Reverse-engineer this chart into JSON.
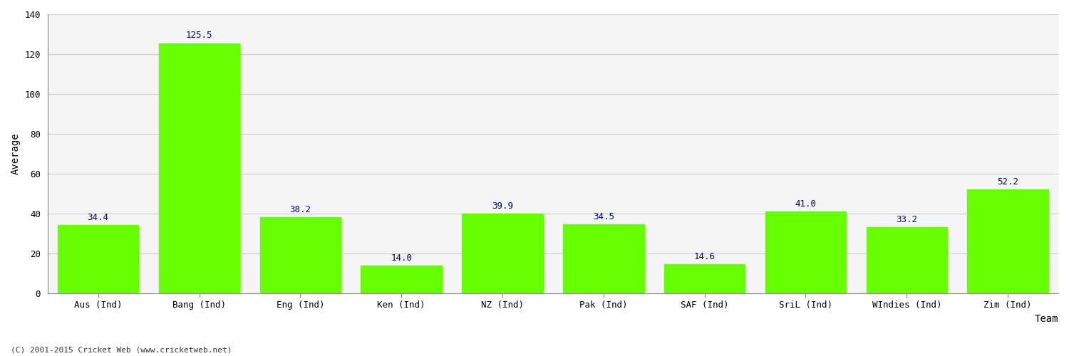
{
  "categories": [
    "Aus (Ind)",
    "Bang (Ind)",
    "Eng (Ind)",
    "Ken (Ind)",
    "NZ (Ind)",
    "Pak (Ind)",
    "SAF (Ind)",
    "SriL (Ind)",
    "WIndies (Ind)",
    "Zim (Ind)"
  ],
  "values": [
    34.4,
    125.5,
    38.2,
    14.0,
    39.9,
    34.5,
    14.6,
    41.0,
    33.2,
    52.2
  ],
  "bar_color": "#66ff00",
  "bar_edge_color": "#66ff00",
  "value_color": "#000080",
  "xlabel": "Team",
  "ylabel": "Average",
  "ylim": [
    0,
    140
  ],
  "yticks": [
    0,
    20,
    40,
    60,
    80,
    100,
    120,
    140
  ],
  "grid_color": "#cccccc",
  "bg_color": "#ffffff",
  "plot_bg_color": "#f5f5f5",
  "footer": "(C) 2001-2015 Cricket Web (www.cricketweb.net)",
  "label_fontsize": 10,
  "tick_fontsize": 9,
  "value_fontsize": 9,
  "footer_fontsize": 8,
  "bar_width": 0.8
}
